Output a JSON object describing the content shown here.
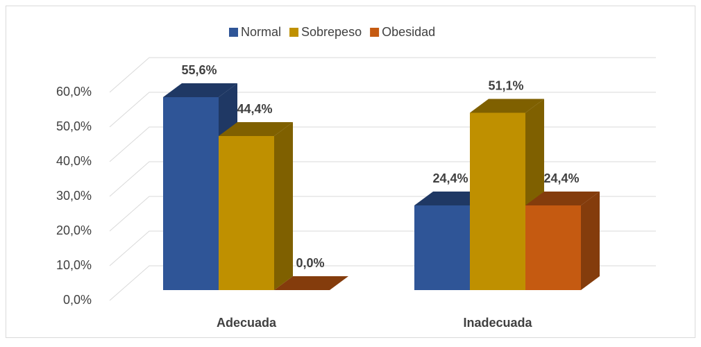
{
  "chart_data": {
    "type": "bar",
    "categories": [
      "Adecuada",
      "Inadecuada"
    ],
    "series": [
      {
        "name": "Normal",
        "color": "#2f5597",
        "shade": "#1f3864",
        "values": [
          55.6,
          24.4
        ],
        "value_labels": [
          "55,6%",
          "24,4%"
        ]
      },
      {
        "name": "Sobrepeso",
        "color": "#bf9000",
        "shade": "#7f6000",
        "values": [
          44.4,
          51.1
        ],
        "value_labels": [
          "44,4%",
          "51,1%"
        ]
      },
      {
        "name": "Obesidad",
        "color": "#c55a11",
        "shade": "#843c0c",
        "values": [
          0,
          24.4
        ],
        "value_labels": [
          "0,0%",
          "24,4%"
        ]
      }
    ],
    "ylim": [
      0,
      60
    ],
    "yticks": [
      {
        "value": 0,
        "label": "0,0%"
      },
      {
        "value": 10,
        "label": "10,0%"
      },
      {
        "value": 20,
        "label": "20,0%"
      },
      {
        "value": 30,
        "label": "30,0%"
      },
      {
        "value": 40,
        "label": "40,0%"
      },
      {
        "value": 50,
        "label": "50,0%"
      },
      {
        "value": 60,
        "label": "60,0%"
      }
    ],
    "grid": true,
    "legend": "top"
  }
}
